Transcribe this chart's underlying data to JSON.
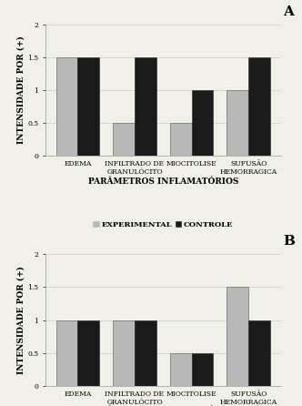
{
  "panel_A": {
    "label": "A",
    "categories": [
      "EDEMA",
      "INFILTRADO DE\nGRANULÓCITO",
      "MIOCITOLISE",
      "SUFUSÃO\nHEMORRAGICA"
    ],
    "experimental": [
      1.5,
      0.5,
      0.5,
      1.0
    ],
    "controle": [
      1.5,
      1.5,
      1.0,
      1.5
    ],
    "ylim": [
      0,
      2
    ],
    "yticks": [
      0,
      0.5,
      1.0,
      1.5,
      2
    ],
    "ytick_labels": [
      "0",
      "0.5",
      "1",
      "1.5",
      "2"
    ],
    "ylabel": "INTENSIDADE POR (+)",
    "xlabel": "PARÂMETROS INFLAMATÓRIOS"
  },
  "panel_B": {
    "label": "B",
    "categories": [
      "EDEMA",
      "INFILTRADO DE\nGRANULÓCITO",
      "MIOCITOLISE",
      "SUFUSÃO\nHEMORRAGICA"
    ],
    "experimental": [
      1.0,
      1.0,
      0.5,
      1.5
    ],
    "controle": [
      1.0,
      1.0,
      0.5,
      1.0
    ],
    "ylim": [
      0,
      2
    ],
    "yticks": [
      0,
      0.5,
      1.0,
      1.5,
      2
    ],
    "ytick_labels": [
      "0",
      "0.5",
      "1",
      "1.5",
      "2"
    ],
    "ylabel": "INTENSIDADE POR (+)",
    "xlabel": "PARÂMETROS INFLAMATÓRIOS"
  },
  "color_experimental": "#b8b8b8",
  "color_controle": "#1a1a1a",
  "bar_width": 0.38,
  "legend_labels": [
    "EXPERIMENTAL",
    "CONTROLE"
  ],
  "background_color": "#f0efe8",
  "tick_fontsize": 5.5,
  "label_fontsize": 6.5,
  "legend_fontsize": 6.0,
  "panel_label_fontsize": 11,
  "category_fontsize": 5.5
}
